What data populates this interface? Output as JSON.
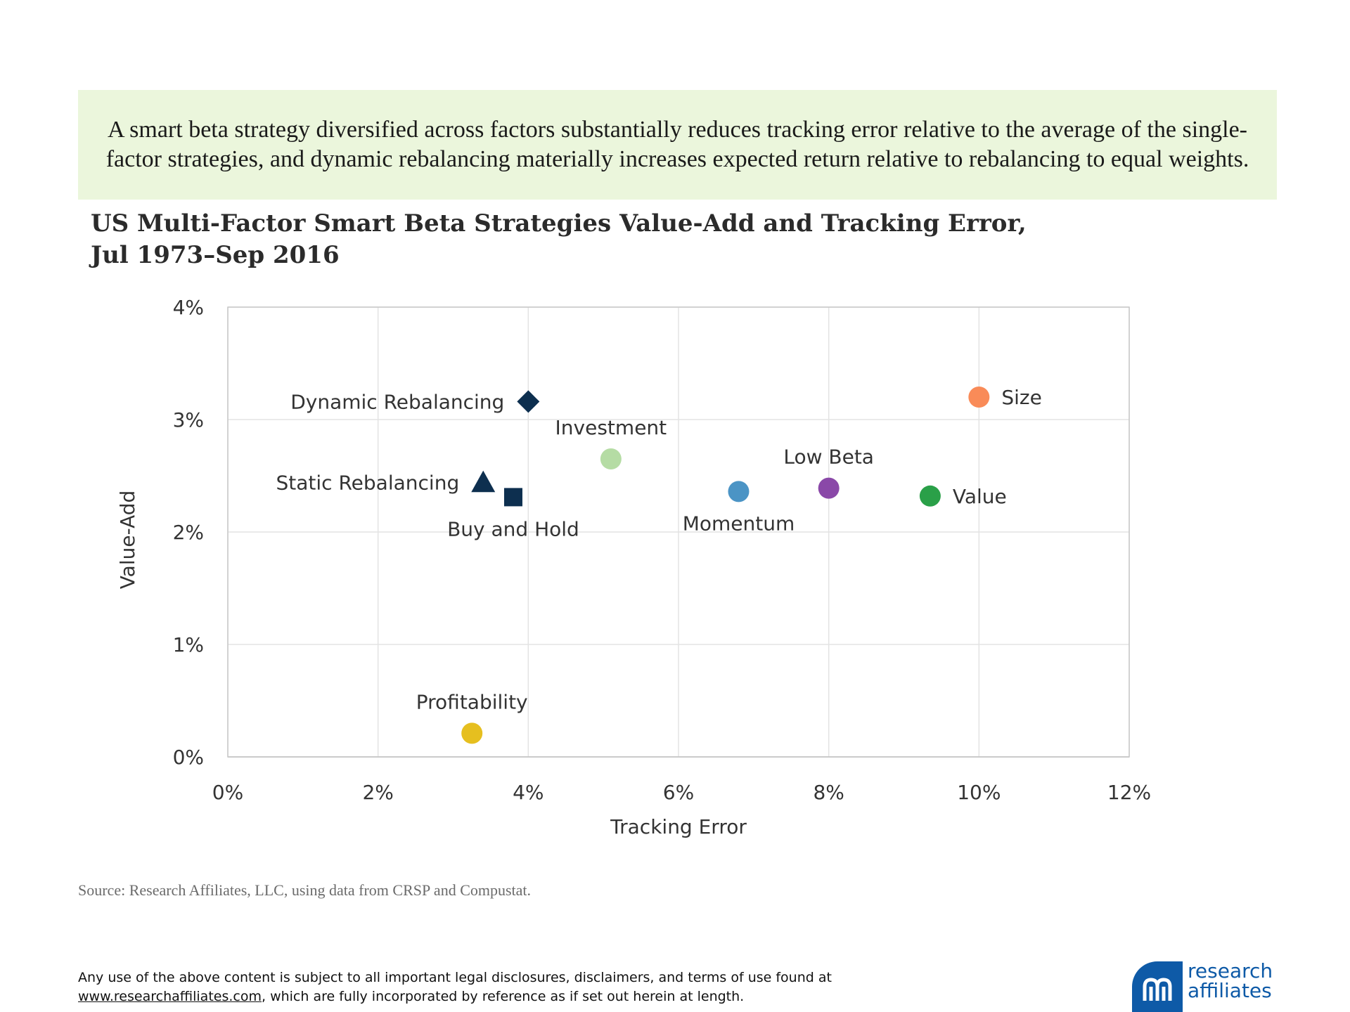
{
  "headline": "A smart beta strategy diversified across factors substantially reduces tracking error relative to the average of the single-factor strategies, and dynamic rebalancing materially increases expected return relative to rebalancing to equal weights.",
  "title_line1": "US Multi-Factor Smart Beta Strategies Value-Add and Tracking Error,",
  "title_line2": "Jul 1973–Sep 2016",
  "source": "Source: Research Affiliates, LLC, using data from CRSP and Compustat.",
  "disclaimer": {
    "text_before": "Any use of the above content is subject to all important legal disclosures, disclaimers, and terms of use found at",
    "link": "www.researchaffiliates.com",
    "text_after": ", which are fully incorporated by reference as if set out herein at length."
  },
  "logo": {
    "line1": "research",
    "line2": "affiliates",
    "tm": "™",
    "icon": "research-affiliates-logo-icon",
    "color": "#0e5aa7"
  },
  "chart_data": {
    "type": "scatter",
    "xlabel": "Tracking Error",
    "ylabel": "Value-Add",
    "xlim": [
      0,
      12
    ],
    "ylim": [
      0,
      4
    ],
    "xticks": [
      "0%",
      "2%",
      "4%",
      "6%",
      "8%",
      "10%",
      "12%"
    ],
    "yticks": [
      "0%",
      "1%",
      "2%",
      "3%",
      "4%"
    ],
    "grid": true,
    "points": [
      {
        "name": "Dynamic Rebalancing",
        "x": 4.0,
        "y": 3.16,
        "shape": "diamond",
        "color": "#0d2f4f",
        "label_pos": "left"
      },
      {
        "name": "Static Rebalancing",
        "x": 3.4,
        "y": 2.44,
        "shape": "triangle",
        "color": "#0d2f4f",
        "label_pos": "left"
      },
      {
        "name": "Buy and Hold",
        "x": 3.8,
        "y": 2.31,
        "shape": "square",
        "color": "#0d2f4f",
        "label_pos": "below"
      },
      {
        "name": "Investment",
        "x": 5.1,
        "y": 2.65,
        "shape": "circle",
        "color": "#b5dca4",
        "label_pos": "above"
      },
      {
        "name": "Momentum",
        "x": 6.8,
        "y": 2.36,
        "shape": "circle",
        "color": "#4b94c5",
        "label_pos": "below"
      },
      {
        "name": "Low Beta",
        "x": 8.0,
        "y": 2.39,
        "shape": "circle",
        "color": "#8a48a8",
        "label_pos": "above"
      },
      {
        "name": "Value",
        "x": 9.35,
        "y": 2.32,
        "shape": "circle",
        "color": "#2aa048",
        "label_pos": "right"
      },
      {
        "name": "Size",
        "x": 10.0,
        "y": 3.2,
        "shape": "circle",
        "color": "#f98b58",
        "label_pos": "right"
      },
      {
        "name": "Profitability",
        "x": 3.25,
        "y": 0.21,
        "shape": "circle",
        "color": "#e6bf1f",
        "label_pos": "above"
      }
    ]
  }
}
